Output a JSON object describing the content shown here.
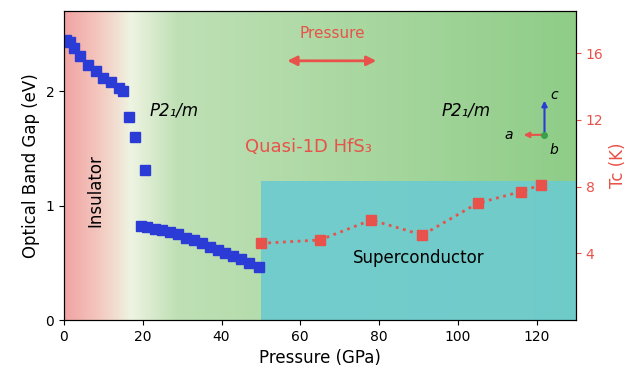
{
  "chart_data": {
    "type": "scatter",
    "x_label": "Pressure (GPa)",
    "y_label": "Optical Band Gap (eV)",
    "y2_label": "Tc (K)",
    "xlim": [
      0,
      130
    ],
    "xticks": [
      0,
      20,
      40,
      60,
      80,
      100,
      120
    ],
    "ylim": [
      0,
      2.7
    ],
    "yticks": [
      0,
      1,
      2
    ],
    "y2lim": [
      0,
      18.5
    ],
    "y2ticks": [
      4,
      8,
      12,
      16
    ],
    "grid": false,
    "series": [
      {
        "color": "#2b3bd6",
        "marker": "square",
        "line_style": "none",
        "x": [
          0.5,
          1.5,
          2.5,
          4,
          6,
          8,
          10,
          12,
          14,
          15,
          16.5,
          18,
          20.5,
          19.5,
          21,
          23,
          25,
          27,
          29,
          31,
          33,
          35,
          37,
          39,
          41,
          43,
          45,
          47,
          49.5
        ],
        "values": [
          2.45,
          2.43,
          2.38,
          2.31,
          2.23,
          2.18,
          2.12,
          2.08,
          2.03,
          2.0,
          1.78,
          1.6,
          1.31,
          0.82,
          0.81,
          0.8,
          0.79,
          0.77,
          0.75,
          0.72,
          0.7,
          0.67,
          0.64,
          0.61,
          0.59,
          0.56,
          0.53,
          0.5,
          0.46
        ]
      },
      {
        "color": "#e8524a",
        "marker": "square",
        "line_style": "dotted",
        "axis": "y2",
        "x": [
          50,
          65,
          78,
          91,
          105,
          116,
          121
        ],
        "values": [
          4.6,
          4.8,
          6.0,
          5.1,
          7.0,
          7.7,
          8.1
        ]
      }
    ],
    "annotations": [
      "Insulator",
      "Superconductor",
      "Quasi-1D HfS₃",
      "P2₁/m",
      "P2₁/m",
      "Pressure",
      "a",
      "b",
      "c"
    ]
  }
}
